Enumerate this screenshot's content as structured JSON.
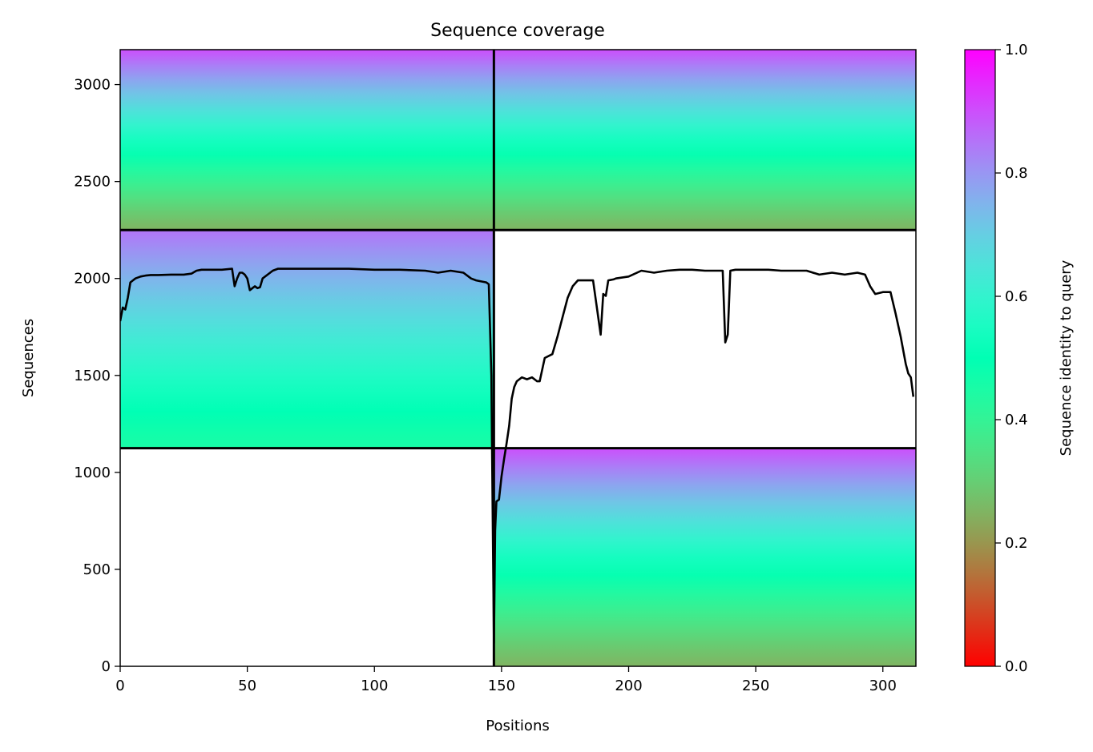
{
  "chart_data": {
    "type": "heatmap",
    "title": "Sequence coverage",
    "xlabel": "Positions",
    "ylabel": "Sequences",
    "xlim": [
      0,
      313
    ],
    "ylim": [
      0,
      3180
    ],
    "xticks": [
      0,
      50,
      100,
      150,
      200,
      250,
      300
    ],
    "yticks": [
      0,
      500,
      1000,
      1500,
      2000,
      2500,
      3000
    ],
    "colorbar": {
      "label": "Sequence identity to query",
      "range": [
        0.0,
        1.0
      ],
      "ticks": [
        0.0,
        0.2,
        0.4,
        0.6,
        0.8,
        1.0
      ],
      "ticklabels": [
        "0.0",
        "0.2",
        "0.4",
        "0.6",
        "0.8",
        "1.0"
      ],
      "colormap": "rainbow_r"
    },
    "chain_boundaries": {
      "x": 147,
      "y": [
        1125,
        2250
      ]
    },
    "blocks": [
      {
        "name": "chain A alignment (top-left)",
        "x": [
          0,
          147
        ],
        "y": [
          2250,
          3180
        ],
        "identity_bottom": 0.25,
        "identity_top": 0.9
      },
      {
        "name": "paired A+B alignment (top-right)",
        "x": [
          147,
          313
        ],
        "y": [
          2250,
          3180
        ],
        "identity_bottom": 0.25,
        "identity_top": 0.9
      },
      {
        "name": "chain A unpaired (middle-left)",
        "x": [
          0,
          147
        ],
        "y": [
          1125,
          2250
        ],
        "identity_bottom": 0.45,
        "identity_top": 0.85
      },
      {
        "name": "chain B unpaired (bottom-right)",
        "x": [
          147,
          313
        ],
        "y": [
          0,
          1125
        ],
        "identity_bottom": 0.25,
        "identity_top": 0.9
      }
    ],
    "coverage_line": {
      "x": [
        0,
        1,
        2,
        3,
        4,
        5,
        6,
        8,
        10,
        12,
        15,
        20,
        25,
        28,
        30,
        32,
        35,
        40,
        44,
        45,
        46,
        47,
        48,
        49,
        50,
        51,
        52,
        53,
        54,
        55,
        56,
        58,
        60,
        62,
        65,
        70,
        80,
        90,
        100,
        110,
        120,
        125,
        130,
        135,
        138,
        140,
        142,
        144,
        145,
        146,
        146.5,
        147,
        147.5,
        148,
        149,
        150,
        151,
        152,
        153,
        154,
        155,
        156,
        157,
        158,
        160,
        162,
        164,
        165,
        167,
        170,
        172,
        174,
        176,
        178,
        180,
        182,
        186,
        189,
        190,
        191,
        192,
        194,
        195,
        200,
        205,
        210,
        215,
        220,
        225,
        230,
        235,
        237,
        238,
        239,
        240,
        242,
        245,
        250,
        255,
        260,
        265,
        270,
        275,
        280,
        285,
        290,
        293,
        295,
        297,
        300,
        303,
        305,
        307,
        309,
        310,
        311,
        312
      ],
      "y": [
        1780,
        1850,
        1840,
        1900,
        1980,
        1990,
        2000,
        2010,
        2015,
        2018,
        2018,
        2020,
        2020,
        2025,
        2040,
        2045,
        2045,
        2045,
        2050,
        1960,
        2000,
        2030,
        2030,
        2020,
        2000,
        1940,
        1950,
        1960,
        1950,
        1955,
        2000,
        2020,
        2040,
        2050,
        2050,
        2050,
        2050,
        2050,
        2045,
        2045,
        2040,
        2030,
        2040,
        2030,
        2000,
        1990,
        1985,
        1980,
        1970,
        1500,
        800,
        120,
        700,
        850,
        860,
        980,
        1070,
        1150,
        1240,
        1380,
        1440,
        1470,
        1480,
        1490,
        1480,
        1490,
        1470,
        1470,
        1590,
        1610,
        1700,
        1800,
        1900,
        1960,
        1990,
        1990,
        1990,
        1710,
        1920,
        1910,
        1990,
        1995,
        2000,
        2010,
        2040,
        2030,
        2040,
        2045,
        2045,
        2040,
        2040,
        2040,
        1670,
        1710,
        2040,
        2045,
        2045,
        2045,
        2045,
        2040,
        2040,
        2040,
        2020,
        2030,
        2020,
        2030,
        2020,
        1960,
        1920,
        1930,
        1930,
        1820,
        1700,
        1560,
        1510,
        1490,
        1390
      ]
    },
    "grid": false
  }
}
